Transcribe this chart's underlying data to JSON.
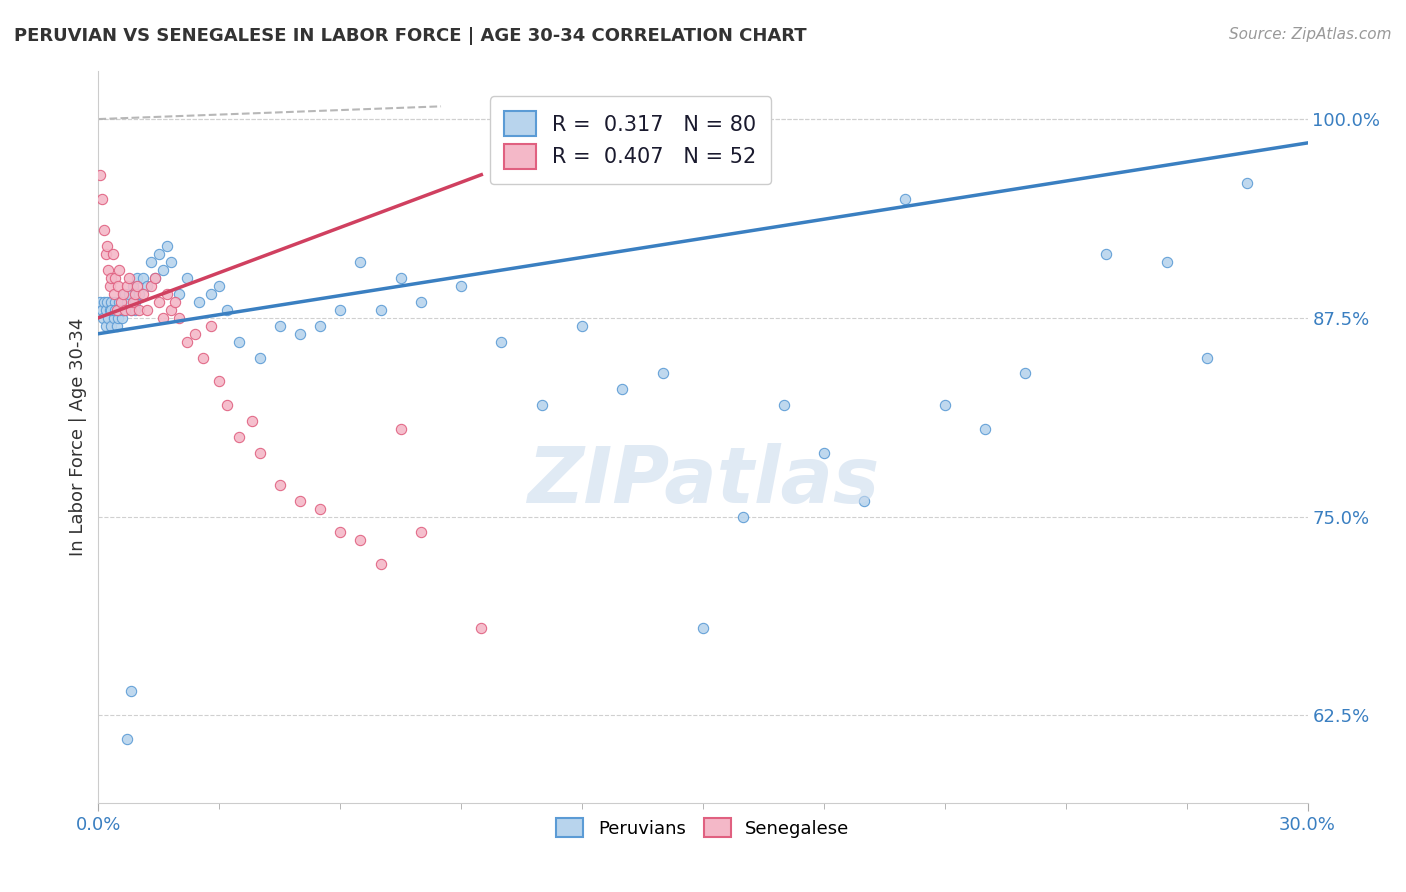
{
  "title": "PERUVIAN VS SENEGALESE IN LABOR FORCE | AGE 30-34 CORRELATION CHART",
  "source": "Source: ZipAtlas.com",
  "ylabel": "In Labor Force | Age 30-34",
  "yticks": [
    62.5,
    75.0,
    87.5,
    100.0
  ],
  "ytick_labels": [
    "62.5%",
    "75.0%",
    "87.5%",
    "100.0%"
  ],
  "xmin": 0.0,
  "xmax": 30.0,
  "ymin": 57.0,
  "ymax": 103.0,
  "r_peruvian": 0.317,
  "n_peruvian": 80,
  "r_senegalese": 0.407,
  "n_senegalese": 52,
  "color_peruvian_fill": "#b8d4ed",
  "color_peruvian_edge": "#5b9bd5",
  "color_senegalese_fill": "#f4b8c8",
  "color_senegalese_edge": "#e06080",
  "color_line_peruvian": "#3a7fc1",
  "color_line_senegalese": "#d04060",
  "color_ref_line": "#b0b0b0",
  "watermark_color": "#ccdcee",
  "peruvian_x": [
    0.05,
    0.1,
    0.12,
    0.15,
    0.18,
    0.2,
    0.22,
    0.25,
    0.28,
    0.3,
    0.32,
    0.35,
    0.38,
    0.4,
    0.42,
    0.45,
    0.48,
    0.5,
    0.52,
    0.55,
    0.58,
    0.6,
    0.65,
    0.7,
    0.75,
    0.8,
    0.85,
    0.9,
    0.95,
    1.0,
    1.1,
    1.2,
    1.3,
    1.4,
    1.5,
    1.6,
    1.7,
    1.8,
    2.0,
    2.2,
    2.5,
    2.8,
    3.0,
    3.2,
    3.5,
    4.0,
    4.5,
    5.0,
    5.5,
    6.0,
    6.5,
    7.0,
    7.5,
    8.0,
    9.0,
    10.0,
    11.0,
    12.0,
    13.0,
    14.0,
    15.0,
    16.0,
    17.0,
    18.0,
    19.0,
    20.0,
    21.0,
    22.0,
    23.0,
    25.0,
    26.5,
    27.5,
    28.5,
    0.3,
    0.4,
    0.5,
    0.6,
    0.7,
    0.8,
    0.9
  ],
  "peruvian_y": [
    88.5,
    88.0,
    87.5,
    88.5,
    87.0,
    88.0,
    88.5,
    87.5,
    88.0,
    88.5,
    87.0,
    88.0,
    87.5,
    88.0,
    88.5,
    87.0,
    87.5,
    88.0,
    88.5,
    88.0,
    87.5,
    88.0,
    89.0,
    88.5,
    89.0,
    88.0,
    89.5,
    88.5,
    90.0,
    89.0,
    90.0,
    89.5,
    91.0,
    90.0,
    91.5,
    90.5,
    92.0,
    91.0,
    89.0,
    90.0,
    88.5,
    89.0,
    89.5,
    88.0,
    86.0,
    85.0,
    87.0,
    86.5,
    87.0,
    88.0,
    91.0,
    88.0,
    90.0,
    88.5,
    89.5,
    86.0,
    82.0,
    87.0,
    83.0,
    84.0,
    68.0,
    75.0,
    82.0,
    79.0,
    76.0,
    95.0,
    82.0,
    80.5,
    84.0,
    91.5,
    91.0,
    85.0,
    96.0,
    88.0,
    88.0,
    88.0,
    88.0,
    61.0,
    64.0,
    88.0
  ],
  "senegalese_x": [
    0.05,
    0.1,
    0.15,
    0.18,
    0.22,
    0.25,
    0.28,
    0.32,
    0.35,
    0.38,
    0.42,
    0.45,
    0.48,
    0.52,
    0.55,
    0.6,
    0.65,
    0.7,
    0.75,
    0.8,
    0.85,
    0.9,
    0.95,
    1.0,
    1.1,
    1.2,
    1.3,
    1.4,
    1.5,
    1.6,
    1.7,
    1.8,
    1.9,
    2.0,
    2.2,
    2.4,
    2.6,
    2.8,
    3.0,
    3.2,
    3.5,
    3.8,
    4.0,
    4.5,
    5.0,
    5.5,
    6.0,
    6.5,
    7.0,
    7.5,
    8.0,
    9.5
  ],
  "senegalese_y": [
    96.5,
    95.0,
    93.0,
    91.5,
    92.0,
    90.5,
    89.5,
    90.0,
    91.5,
    89.0,
    90.0,
    88.0,
    89.5,
    90.5,
    88.5,
    89.0,
    88.0,
    89.5,
    90.0,
    88.0,
    88.5,
    89.0,
    89.5,
    88.0,
    89.0,
    88.0,
    89.5,
    90.0,
    88.5,
    87.5,
    89.0,
    88.0,
    88.5,
    87.5,
    86.0,
    86.5,
    85.0,
    87.0,
    83.5,
    82.0,
    80.0,
    81.0,
    79.0,
    77.0,
    76.0,
    75.5,
    74.0,
    73.5,
    72.0,
    80.5,
    74.0,
    68.0
  ],
  "peru_trend_x": [
    0.0,
    30.0
  ],
  "peru_trend_y": [
    86.5,
    98.5
  ],
  "sen_trend_x": [
    0.0,
    9.5
  ],
  "sen_trend_y": [
    87.5,
    96.5
  ],
  "ref_line_x": [
    0.0,
    8.5
  ],
  "ref_line_y": [
    100.0,
    100.8
  ]
}
